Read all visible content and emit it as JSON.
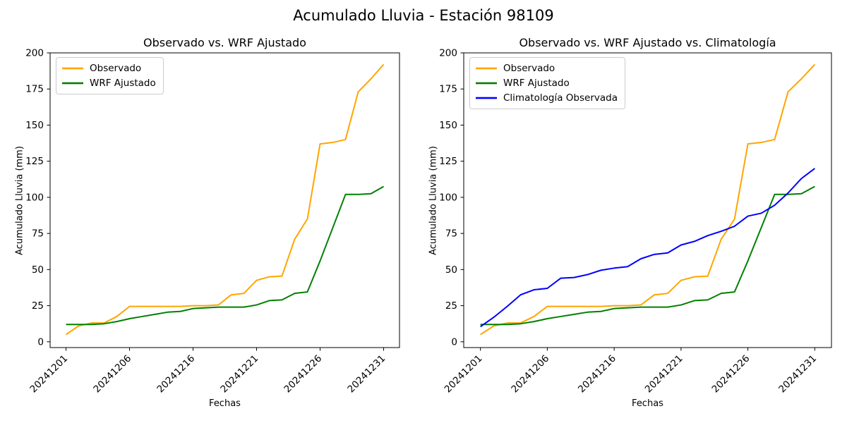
{
  "figure": {
    "suptitle": "Acumulado Lluvia - Estación 98109",
    "background": "#ffffff",
    "spine_color": "#000000",
    "text_color": "#000000"
  },
  "chart_data": [
    {
      "type": "line",
      "title": "Observado vs. WRF Ajustado",
      "xlabel": "Fechas",
      "ylabel": "Acumulado Lluvia (mm)",
      "grid": false,
      "legend_position": "upper left",
      "xlim": [
        -1.25,
        26.25
      ],
      "ylim": [
        -4,
        200
      ],
      "n_points": 26,
      "ytick_values": [
        0,
        25,
        50,
        75,
        100,
        125,
        150,
        175,
        200
      ],
      "xtick_positions": [
        0,
        5,
        10,
        15,
        20,
        25
      ],
      "xtick_labels": [
        "20241201",
        "20241206",
        "20241216",
        "20241221",
        "20241226",
        "20241231"
      ],
      "xtick_rotation": 45,
      "series": [
        {
          "name": "Observado",
          "color": "#FFA500",
          "values": [
            5,
            11,
            13,
            13,
            17.5,
            24.5,
            24.5,
            24.5,
            24.5,
            24.5,
            25,
            25,
            25.5,
            32.5,
            33.5,
            42.5,
            45,
            45.5,
            71,
            85,
            137,
            138,
            140,
            173,
            182,
            192
          ]
        },
        {
          "name": "WRF Ajustado",
          "color": "#008000",
          "values": [
            12,
            12,
            12,
            12.5,
            14,
            16,
            17.5,
            19,
            20.5,
            21,
            23,
            23.5,
            24,
            24,
            24,
            25.5,
            28.5,
            29,
            33.5,
            34.5,
            56,
            79,
            102,
            102,
            102.5,
            107.5
          ]
        }
      ]
    },
    {
      "type": "line",
      "title": "Observado vs. WRF Ajustado vs. Climatología",
      "xlabel": "Fechas",
      "ylabel": "Acumulado Lluvia (mm)",
      "grid": false,
      "legend_position": "upper left",
      "xlim": [
        -1.25,
        26.25
      ],
      "ylim": [
        -4,
        200
      ],
      "n_points": 26,
      "ytick_values": [
        0,
        25,
        50,
        75,
        100,
        125,
        150,
        175,
        200
      ],
      "xtick_positions": [
        0,
        5,
        10,
        15,
        20,
        25
      ],
      "xtick_labels": [
        "20241201",
        "20241206",
        "20241216",
        "20241221",
        "20241226",
        "20241231"
      ],
      "xtick_rotation": 45,
      "series": [
        {
          "name": "Observado",
          "color": "#FFA500",
          "values": [
            5,
            11,
            13,
            13,
            17.5,
            24.5,
            24.5,
            24.5,
            24.5,
            24.5,
            25,
            25,
            25.5,
            32.5,
            33.5,
            42.5,
            45,
            45.5,
            71,
            85,
            137,
            138,
            140,
            173,
            182,
            192
          ]
        },
        {
          "name": "WRF Ajustado",
          "color": "#008000",
          "values": [
            12,
            12,
            12,
            12.5,
            14,
            16,
            17.5,
            19,
            20.5,
            21,
            23,
            23.5,
            24,
            24,
            24,
            25.5,
            28.5,
            29,
            33.5,
            34.5,
            56,
            79,
            102,
            102,
            102.5,
            107.5
          ]
        },
        {
          "name": "Climatología Observada",
          "color": "#0000FF",
          "values": [
            10.5,
            17,
            24.5,
            32.5,
            36,
            37,
            44,
            44.5,
            46.5,
            49.5,
            51,
            52,
            57.5,
            60.5,
            61.5,
            67,
            69.5,
            73.5,
            76.5,
            80,
            87,
            89,
            94.5,
            103,
            113,
            120
          ]
        }
      ]
    }
  ]
}
